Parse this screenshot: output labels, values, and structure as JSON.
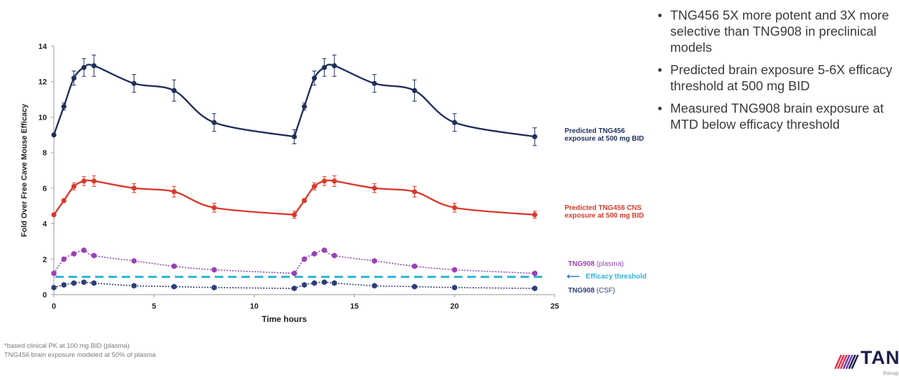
{
  "chart_data": {
    "type": "line",
    "xlabel": "Time hours",
    "ylabel": "Fold Over Free Cave Mouse Efficacy",
    "xlim": [
      0,
      25
    ],
    "ylim": [
      0,
      14
    ],
    "xticks": [
      0,
      5,
      10,
      15,
      20,
      25
    ],
    "yticks": [
      0,
      2,
      4,
      6,
      8,
      10,
      12,
      14
    ],
    "grid": false,
    "threshold": {
      "y": 1.0,
      "label": "Efficacy threshold",
      "color": "#29b6d9"
    },
    "series": [
      {
        "name": "Predicted TNG456 exposure at 500 mg BID",
        "color": "#1f2f5c",
        "style": "solid",
        "marker": "circle",
        "x": [
          0,
          0.5,
          1,
          1.5,
          2,
          4,
          6,
          8,
          12,
          12.5,
          13,
          13.5,
          14,
          16,
          18,
          20,
          24
        ],
        "y": [
          9.0,
          10.6,
          12.2,
          12.8,
          12.9,
          11.9,
          11.5,
          9.7,
          8.9,
          10.6,
          12.2,
          12.8,
          12.9,
          11.9,
          11.5,
          9.7,
          8.9
        ],
        "err": [
          0,
          0.2,
          0.4,
          0.5,
          0.6,
          0.5,
          0.6,
          0.5,
          0.4,
          0.2,
          0.4,
          0.5,
          0.6,
          0.5,
          0.6,
          0.5,
          0.5
        ]
      },
      {
        "name": "Predicted TNG456 CNS exposure at 500 mg BID",
        "color": "#d93a2b",
        "style": "solid",
        "marker": "circle",
        "x": [
          0,
          0.5,
          1,
          1.5,
          2,
          4,
          6,
          8,
          12,
          12.5,
          13,
          13.5,
          14,
          16,
          18,
          20,
          24
        ],
        "y": [
          4.5,
          5.3,
          6.1,
          6.4,
          6.4,
          6.0,
          5.8,
          4.9,
          4.5,
          5.3,
          6.1,
          6.4,
          6.4,
          6.0,
          5.8,
          4.9,
          4.5
        ],
        "err": [
          0,
          0.1,
          0.2,
          0.25,
          0.3,
          0.25,
          0.3,
          0.25,
          0.2,
          0.1,
          0.2,
          0.25,
          0.3,
          0.25,
          0.3,
          0.25,
          0.2
        ]
      },
      {
        "name": "TNG908 (plasma)",
        "color": "#9b3fb5",
        "style": "dotted",
        "marker": "hexagon",
        "x": [
          0,
          0.5,
          1,
          1.5,
          2,
          4,
          6,
          8,
          12,
          12.5,
          13,
          13.5,
          14,
          16,
          18,
          20,
          24
        ],
        "y": [
          1.2,
          2.0,
          2.3,
          2.5,
          2.2,
          1.9,
          1.6,
          1.4,
          1.2,
          2.0,
          2.3,
          2.5,
          2.2,
          1.9,
          1.6,
          1.4,
          1.2
        ],
        "err": []
      },
      {
        "name": "TNG908 (CSF)",
        "color": "#2c3e78",
        "style": "dotted",
        "marker": "hexagon",
        "x": [
          0,
          0.5,
          1,
          1.5,
          2,
          4,
          6,
          8,
          12,
          12.5,
          13,
          13.5,
          14,
          16,
          18,
          20,
          24
        ],
        "y": [
          0.4,
          0.55,
          0.65,
          0.7,
          0.65,
          0.5,
          0.45,
          0.4,
          0.35,
          0.55,
          0.65,
          0.7,
          0.65,
          0.5,
          0.45,
          0.4,
          0.35
        ],
        "err": []
      }
    ],
    "annotations": {
      "tng456": {
        "text": "Predicted TNG456 exposure at 500 mg BID",
        "color": "#1f2f5c"
      },
      "cns": {
        "text": "Predicted TNG456 CNS exposure at 500 mg BID",
        "color": "#d93a2b"
      },
      "plasma_name": "TNG908",
      "plasma_suffix": " (plasma)",
      "threshold": "Efficacy threshold",
      "csf_name": "TNG908",
      "csf_suffix": " (CSF)"
    }
  },
  "bullets": [
    "TNG456 5X more potent and 3X more selective than TNG908 in preclinical models",
    "Predicted brain exposure 5-6X efficacy threshold at 500 mg BID",
    "Measured TNG908 brain exposure at MTD below efficacy threshold"
  ],
  "bullet_symbol": "•",
  "footnote": {
    "line1": "*based clinical PK at 100 mg BID (plasma)",
    "line2": "TNG456 brain exposure modeled at 50% of plasma"
  },
  "logo": {
    "text": "TAN",
    "subtext": "therap",
    "colors": [
      "#e8324a",
      "#6a3fb5",
      "#1b1d4a"
    ]
  }
}
